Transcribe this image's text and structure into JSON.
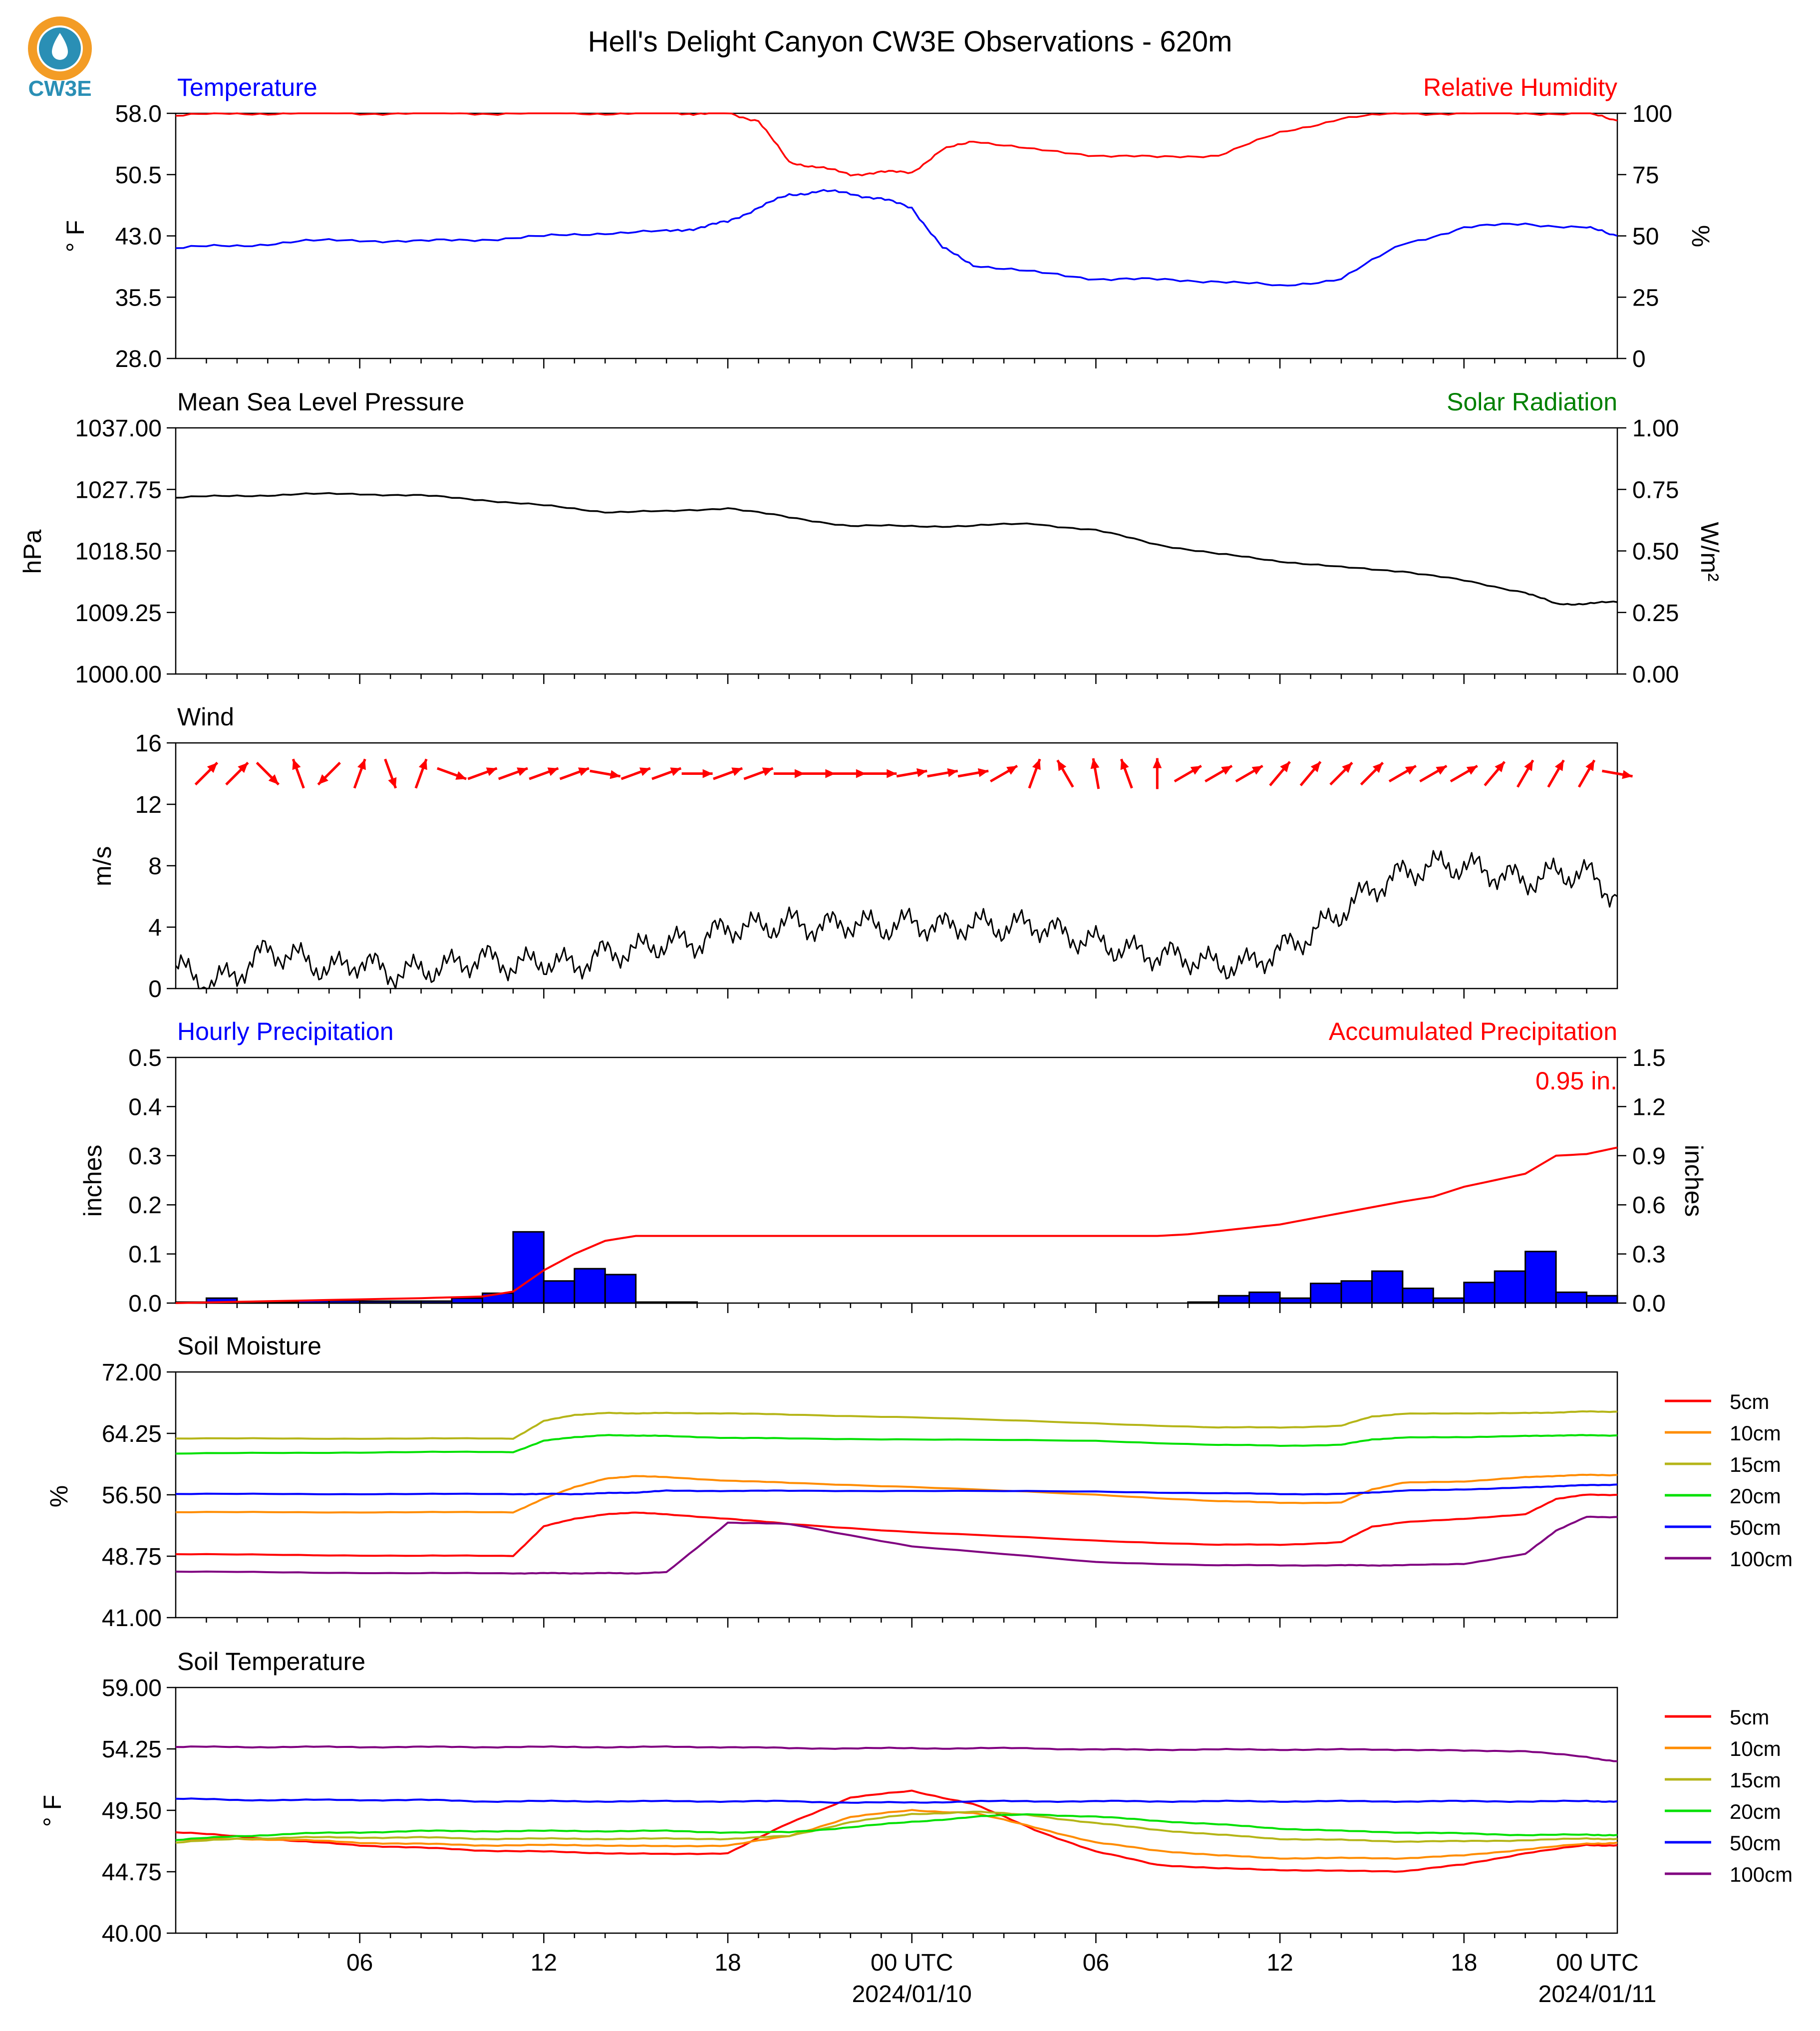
{
  "header": {
    "title": "Hell's Delight Canyon CW3E Observations - 620m",
    "logo_text": "CW3E"
  },
  "x_axis": {
    "tick_labels": [
      "06",
      "12",
      "18",
      "00 UTC",
      "06",
      "12",
      "18",
      "00 UTC"
    ],
    "date_labels": [
      "2024/01/10",
      "2024/01/11"
    ]
  },
  "colors": {
    "temperature": "#0000ff",
    "humidity": "#ff0000",
    "pressure": "#000000",
    "solar": "#008000",
    "wind": "#000000",
    "wind_arrows": "#ff0000",
    "precip_bars": "#0000ff",
    "precip_accum": "#ff0000",
    "logo": "#2a8fb5",
    "logo_ring": "#f39c25"
  },
  "chart_data": [
    {
      "type": "line",
      "name": "temp_rh",
      "title_left": "Temperature",
      "title_right": "Relative Humidity",
      "ylabel_left": "° F",
      "ylabel_right": "%",
      "ylim_left": [
        28.0,
        58.0
      ],
      "ylim_right": [
        0,
        100
      ],
      "yticks_left": [
        "58.0",
        "50.5",
        "43.0",
        "35.5",
        "28.0"
      ],
      "yticks_right": [
        "100",
        "75",
        "50",
        "25",
        "0"
      ],
      "x_hours": [
        0,
        2,
        4,
        6,
        8,
        10,
        12,
        14,
        16,
        17,
        18,
        19,
        20,
        21,
        22,
        23,
        24,
        25,
        26,
        28,
        30,
        32,
        34,
        36,
        38,
        40,
        42,
        44,
        46,
        47
      ],
      "series": [
        {
          "name": "Temperature",
          "axis": "left",
          "values": [
            41.5,
            41.8,
            42.3,
            42.5,
            42.3,
            42.6,
            42.9,
            43.4,
            43.5,
            44.0,
            44.7,
            46.5,
            48.0,
            48.5,
            48.2,
            47.5,
            46.5,
            41.5,
            39.5,
            38.5,
            37.8,
            37.6,
            37.5,
            36.8,
            37.8,
            42.0,
            44.0,
            44.5,
            44.0,
            43.0
          ]
        },
        {
          "name": "Relative Humidity",
          "axis": "right",
          "values": [
            99,
            100,
            100,
            100,
            100,
            100,
            100,
            100,
            100,
            100,
            100,
            97,
            80,
            78,
            75,
            76,
            76,
            85,
            89,
            85,
            83,
            82,
            83,
            92,
            98,
            100,
            100,
            100,
            100,
            97
          ]
        }
      ]
    },
    {
      "type": "line",
      "name": "pressure_solar",
      "title_left": "Mean Sea Level Pressure",
      "title_right": "Solar Radiation",
      "ylabel_left": "hPa",
      "ylabel_right": "W/m²",
      "ylim_left": [
        1000.0,
        1037.0
      ],
      "ylim_right": [
        0.0,
        1.0
      ],
      "yticks_left": [
        "1037.00",
        "1027.75",
        "1018.50",
        "1009.25",
        "1000.00"
      ],
      "yticks_right": [
        "1.00",
        "0.75",
        "0.50",
        "0.25",
        "0.00"
      ],
      "x_hours": [
        0,
        2,
        4,
        6,
        8,
        10,
        12,
        14,
        16,
        18,
        20,
        22,
        24,
        26,
        28,
        30,
        32,
        34,
        36,
        38,
        40,
        42,
        44,
        45,
        46,
        47
      ],
      "series": [
        {
          "name": "Mean Sea Level Pressure",
          "axis": "left",
          "values": [
            1026.5,
            1026.8,
            1027.0,
            1027.1,
            1026.8,
            1026.2,
            1025.3,
            1024.4,
            1024.4,
            1025.0,
            1023.5,
            1022.3,
            1022.2,
            1022.3,
            1022.6,
            1021.6,
            1019.5,
            1018.0,
            1017.0,
            1016.0,
            1015.5,
            1014.0,
            1012.3,
            1010.5,
            1010.6,
            1010.8
          ]
        }
      ]
    },
    {
      "type": "line",
      "name": "wind",
      "title_left": "Wind",
      "ylabel_left": "m/s",
      "ylim_left": [
        0,
        16
      ],
      "yticks_left": [
        "16",
        "12",
        "8",
        "4",
        "0"
      ],
      "x_hours": [
        0,
        1,
        2,
        3,
        4,
        5,
        6,
        7,
        8,
        9,
        10,
        11,
        12,
        13,
        14,
        15,
        16,
        17,
        18,
        19,
        20,
        21,
        22,
        23,
        24,
        25,
        26,
        27,
        28,
        29,
        30,
        31,
        32,
        33,
        34,
        35,
        36,
        37,
        38,
        39,
        40,
        41,
        42,
        43,
        44,
        45,
        46,
        47
      ],
      "series": [
        {
          "name": "Wind Speed",
          "axis": "left",
          "values": [
            1.5,
            0.2,
            1.0,
            2.5,
            2.0,
            1.2,
            1.8,
            1.0,
            1.2,
            1.5,
            2.0,
            1.5,
            1.8,
            1.5,
            2.3,
            2.5,
            3.0,
            3.0,
            4.0,
            4.0,
            4.3,
            4.0,
            4.3,
            4.0,
            4.3,
            4.0,
            4.2,
            4.0,
            4.2,
            3.5,
            3.0,
            2.5,
            2.2,
            2.0,
            1.5,
            1.6,
            2.5,
            3.5,
            5.0,
            6.5,
            7.5,
            8.0,
            8.0,
            7.5,
            7.0,
            7.5,
            7.5,
            6.0
          ]
        }
      ],
      "arrows": {
        "x_hours": [
          1,
          2,
          3,
          4,
          5,
          6,
          7,
          8,
          9,
          10,
          11,
          12,
          13,
          14,
          15,
          16,
          17,
          18,
          19,
          20,
          21,
          22,
          23,
          24,
          25,
          26,
          27,
          28,
          29,
          30,
          31,
          32,
          33,
          34,
          35,
          36,
          37,
          38,
          39,
          40,
          41,
          42,
          43,
          44,
          45,
          46,
          47
        ],
        "direction_deg": [
          225,
          225,
          315,
          160,
          45,
          200,
          340,
          200,
          290,
          250,
          250,
          250,
          250,
          280,
          250,
          250,
          270,
          250,
          250,
          270,
          270,
          270,
          270,
          260,
          260,
          260,
          240,
          200,
          150,
          170,
          160,
          180,
          240,
          240,
          240,
          220,
          220,
          225,
          225,
          240,
          240,
          240,
          220,
          210,
          210,
          210,
          280
        ]
      }
    },
    {
      "type": "bar",
      "name": "precip",
      "title_left": "Hourly Precipitation",
      "title_right": "Accumulated Precipitation",
      "annotation": "0.95 in.",
      "ylabel_left": "inches",
      "ylabel_right": "inches",
      "ylim_left": [
        0,
        0.5
      ],
      "ylim_right": [
        0,
        1.5
      ],
      "yticks_left": [
        "0.5",
        "0.4",
        "0.3",
        "0.2",
        "0.1",
        "0.0"
      ],
      "yticks_right": [
        "1.5",
        "1.2",
        "0.9",
        "0.6",
        "0.3",
        "0.0"
      ],
      "bars_hours": [
        0,
        1,
        2,
        3,
        4,
        5,
        6,
        7,
        8,
        9,
        10,
        11,
        12,
        13,
        14,
        15,
        16,
        17,
        18,
        19,
        20,
        21,
        22,
        23,
        24,
        25,
        26,
        27,
        28,
        29,
        30,
        31,
        32,
        33,
        34,
        35,
        36,
        37,
        38,
        39,
        40,
        41,
        42,
        43,
        44,
        45,
        46
      ],
      "hourly": [
        0.002,
        0.01,
        0.002,
        0.002,
        0.005,
        0.005,
        0.004,
        0.004,
        0.004,
        0.01,
        0.02,
        0.145,
        0.045,
        0.07,
        0.058,
        0.002,
        0.002,
        0,
        0,
        0,
        0,
        0,
        0,
        0,
        0,
        0,
        0,
        0,
        0,
        0,
        0,
        0,
        0,
        0.002,
        0.015,
        0.022,
        0.01,
        0.04,
        0.045,
        0.065,
        0.03,
        0.01,
        0.042,
        0.065,
        0.105,
        0.022,
        0.015
      ],
      "accum_hours": [
        0,
        4,
        8,
        10,
        11,
        12,
        13,
        14,
        15,
        16,
        18,
        24,
        30,
        32,
        33,
        34,
        36,
        38,
        40,
        41,
        42,
        43,
        44,
        45,
        46,
        47
      ],
      "accumulated": [
        0.0,
        0.015,
        0.03,
        0.04,
        0.07,
        0.2,
        0.3,
        0.38,
        0.41,
        0.41,
        0.41,
        0.41,
        0.41,
        0.41,
        0.42,
        0.44,
        0.48,
        0.55,
        0.62,
        0.65,
        0.71,
        0.75,
        0.79,
        0.9,
        0.91,
        0.95
      ]
    },
    {
      "type": "line",
      "name": "soil_moisture",
      "title_left": "Soil Moisture",
      "ylabel_left": "%",
      "ylim_left": [
        41.0,
        72.0
      ],
      "yticks_left": [
        "72.00",
        "64.25",
        "56.50",
        "48.75",
        "41.00"
      ],
      "x_hours": [
        0,
        4,
        8,
        11,
        12,
        13,
        14,
        15,
        16,
        18,
        20,
        24,
        30,
        34,
        36,
        38,
        39,
        40,
        42,
        44,
        45,
        46,
        47
      ],
      "series": [
        {
          "name": "5cm",
          "values": [
            49.0,
            48.9,
            48.8,
            48.8,
            52.5,
            53.5,
            54.0,
            54.3,
            54.0,
            53.5,
            52.8,
            51.8,
            50.7,
            50.2,
            50.2,
            50.5,
            52.5,
            53.0,
            53.5,
            54.0,
            56.0,
            56.5,
            56.5
          ]
        },
        {
          "name": "10cm",
          "values": [
            54.3,
            54.3,
            54.3,
            54.3,
            56.0,
            57.5,
            58.5,
            58.9,
            58.7,
            58.3,
            58.0,
            57.5,
            56.5,
            55.7,
            55.5,
            55.5,
            57.2,
            58.0,
            58.2,
            58.7,
            58.9,
            59.0,
            59.0
          ]
        },
        {
          "name": "15cm",
          "values": [
            63.6,
            63.6,
            63.6,
            63.6,
            65.8,
            66.6,
            66.8,
            66.8,
            66.8,
            66.8,
            66.6,
            66.3,
            65.5,
            65.0,
            65.0,
            65.2,
            66.4,
            66.7,
            66.8,
            66.8,
            66.9,
            67.0,
            67.0
          ]
        },
        {
          "name": "20cm",
          "values": [
            61.7,
            61.8,
            61.9,
            61.9,
            63.3,
            63.8,
            64.0,
            64.0,
            63.9,
            63.7,
            63.6,
            63.5,
            63.3,
            62.8,
            62.7,
            62.8,
            63.5,
            63.7,
            63.8,
            63.9,
            64.0,
            64.0,
            64.0
          ]
        },
        {
          "name": "50cm",
          "values": [
            56.6,
            56.6,
            56.6,
            56.6,
            56.6,
            56.6,
            56.7,
            56.8,
            57.0,
            57.0,
            57.0,
            57.0,
            56.9,
            56.7,
            56.6,
            56.6,
            56.8,
            57.0,
            57.2,
            57.4,
            57.6,
            57.7,
            57.8
          ]
        },
        {
          "name": "100cm",
          "values": [
            46.8,
            46.7,
            46.6,
            46.6,
            46.6,
            46.6,
            46.6,
            46.6,
            46.7,
            53.0,
            52.8,
            50.0,
            48.0,
            47.6,
            47.6,
            47.6,
            47.6,
            47.6,
            47.8,
            49.0,
            52.0,
            53.7,
            53.7
          ]
        }
      ]
    },
    {
      "type": "line",
      "name": "soil_temperature",
      "title_left": "Soil Temperature",
      "ylabel_left": "° F",
      "ylim_left": [
        40.0,
        59.0
      ],
      "yticks_left": [
        "59.00",
        "54.25",
        "49.50",
        "44.75",
        "40.00"
      ],
      "x_hours": [
        0,
        2,
        4,
        6,
        8,
        10,
        12,
        14,
        16,
        18,
        20,
        22,
        24,
        26,
        28,
        30,
        32,
        34,
        36,
        38,
        40,
        42,
        44,
        46,
        47
      ],
      "series": [
        {
          "name": "5cm",
          "values": [
            47.8,
            47.5,
            47.1,
            46.8,
            46.6,
            46.4,
            46.3,
            46.2,
            46.1,
            46.2,
            48.5,
            50.5,
            51.0,
            50.0,
            48.0,
            46.3,
            45.3,
            45.0,
            44.9,
            44.8,
            44.8,
            45.3,
            46.2,
            46.8,
            46.8
          ]
        },
        {
          "name": "10cm",
          "values": [
            47.2,
            47.3,
            47.2,
            47.0,
            46.9,
            46.8,
            46.8,
            46.8,
            46.7,
            46.8,
            47.5,
            49.0,
            49.5,
            49.3,
            48.2,
            47.0,
            46.4,
            46.0,
            45.8,
            45.8,
            45.8,
            46.0,
            46.5,
            46.9,
            47.0
          ]
        },
        {
          "name": "15cm",
          "values": [
            47.0,
            47.3,
            47.4,
            47.4,
            47.4,
            47.3,
            47.3,
            47.3,
            47.3,
            47.3,
            47.5,
            48.6,
            49.2,
            49.4,
            49.1,
            48.5,
            48.0,
            47.6,
            47.3,
            47.2,
            47.1,
            47.1,
            47.2,
            47.3,
            47.3
          ]
        },
        {
          "name": "20cm",
          "values": [
            47.2,
            47.5,
            47.7,
            47.8,
            47.9,
            47.9,
            47.9,
            47.9,
            47.9,
            47.8,
            47.8,
            48.2,
            48.6,
            49.0,
            49.2,
            49.0,
            48.7,
            48.4,
            48.1,
            47.9,
            47.8,
            47.7,
            47.6,
            47.6,
            47.6
          ]
        },
        {
          "name": "50cm",
          "values": [
            50.4,
            50.3,
            50.3,
            50.3,
            50.3,
            50.2,
            50.2,
            50.2,
            50.2,
            50.2,
            50.2,
            50.1,
            50.1,
            50.2,
            50.2,
            50.2,
            50.2,
            50.2,
            50.2,
            50.2,
            50.2,
            50.2,
            50.2,
            50.2,
            50.2
          ]
        },
        {
          "name": "100cm",
          "values": [
            54.4,
            54.4,
            54.4,
            54.4,
            54.4,
            54.4,
            54.4,
            54.4,
            54.4,
            54.4,
            54.3,
            54.3,
            54.3,
            54.3,
            54.3,
            54.2,
            54.2,
            54.2,
            54.2,
            54.2,
            54.2,
            54.1,
            54.1,
            53.6,
            53.3
          ]
        }
      ]
    }
  ],
  "soil_legend": {
    "labels": [
      "5cm",
      "10cm",
      "15cm",
      "20cm",
      "50cm",
      "100cm"
    ],
    "colors": [
      "#ff0000",
      "#ff8c00",
      "#b5b518",
      "#00e000",
      "#0000ff",
      "#800080"
    ]
  }
}
